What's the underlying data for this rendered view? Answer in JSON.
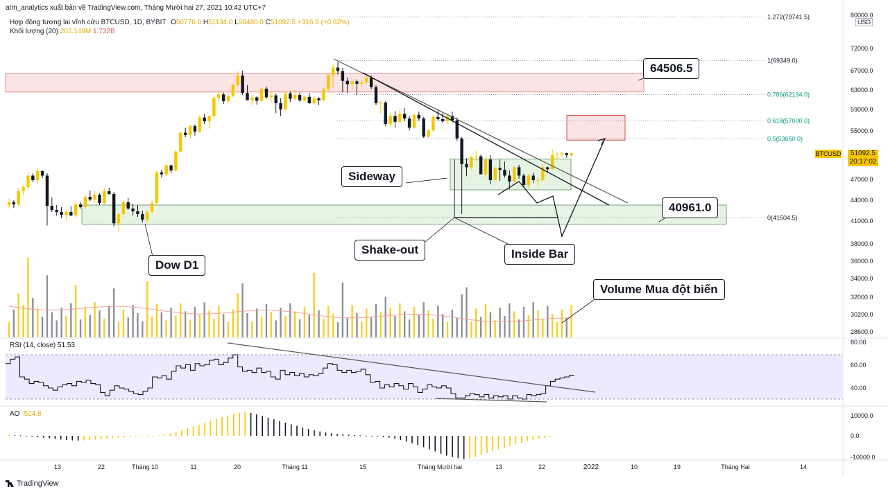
{
  "header": {
    "publisher_line": "atm_analytics xuất bản về TradingView.com, Tháng Mười hai 27, 2021 10:42 UTC+7",
    "symbol_desc": "Hợp đồng tương lai vĩnh cửu BTCUSD, 1D, BYBIT",
    "ohlc": {
      "o_label": "O",
      "o": "50776.0",
      "h_label": "H",
      "h": "51134.0",
      "l_label": "L",
      "l": "50480.0",
      "c_label": "C",
      "c": "51092.5",
      "change": "+316.5 (+0.62%)"
    },
    "volume_label": "Khối lượng (20)",
    "volume_value": "202.149M",
    "volume_ma": "1.732B"
  },
  "price_axis": {
    "ticks": [
      "80000.0",
      "72000.0",
      "67000.0",
      "63000.0",
      "59000.0",
      "55000.0",
      "51000.0",
      "47000.0",
      "44000.0",
      "41000.0",
      "38000.0",
      "36000.0",
      "34000.0",
      "32000.0",
      "30200.0",
      "28600.0"
    ],
    "currency": "USD",
    "symbol_tag": "BTCUSD",
    "last_price": "51092.5",
    "countdown": "20:17:02"
  },
  "fib_levels": [
    "1.272(79741.5)",
    "1(69349.0)",
    "0.786(62134.0)",
    "0.618(57000.0)",
    "0.5(53650.0)",
    "0(41504.5)"
  ],
  "callouts": {
    "resistance": "64506.5",
    "support": "40961.0",
    "sideway": "Sideway",
    "shakeout": "Shake-out",
    "insidebar": "Inside Bar",
    "dow": "Dow D1",
    "volume_note": "Volume Mua đột biến"
  },
  "rsi": {
    "label": "RSI (14, close)",
    "value": "51.53",
    "ticks": [
      "80.00",
      "60.00",
      "40.00"
    ]
  },
  "ao": {
    "label": "AO",
    "value": "-524.8",
    "ticks": [
      "10000.0",
      "0.0",
      "-10000.0"
    ]
  },
  "time_axis": [
    "13",
    "22",
    "Tháng 10",
    "11",
    "20",
    "Tháng 11",
    "15",
    "Tháng Mười hai",
    "13",
    "22",
    "2022",
    "10",
    "19",
    "Tháng Hai",
    "14"
  ],
  "branding": "TradingView",
  "colors": {
    "up": "#f7c600",
    "down": "#131722",
    "rsi_line": "#131722",
    "rsi_band": "#ede9ff",
    "zone_green": "#e6f4e4",
    "zone_red": "#fbe4e4",
    "volume_ma": "#f2a09b"
  },
  "chart_data": {
    "type": "candlestick",
    "symbol": "BTCUSD",
    "timeframe": "1D",
    "y_range": [
      28000,
      81000
    ],
    "candles": [
      {
        "o": 43300,
        "h": 44200,
        "l": 42800,
        "c": 43700
      },
      {
        "o": 43700,
        "h": 44000,
        "l": 42900,
        "c": 43400
      },
      {
        "o": 43400,
        "h": 45800,
        "l": 43100,
        "c": 45300
      },
      {
        "o": 45300,
        "h": 46200,
        "l": 44800,
        "c": 45900
      },
      {
        "o": 45900,
        "h": 48200,
        "l": 45500,
        "c": 47600
      },
      {
        "o": 47600,
        "h": 48000,
        "l": 46600,
        "c": 46900
      },
      {
        "o": 46900,
        "h": 48900,
        "l": 46500,
        "c": 48300
      },
      {
        "o": 48300,
        "h": 48400,
        "l": 47200,
        "c": 47600
      },
      {
        "o": 47600,
        "h": 48000,
        "l": 40400,
        "c": 43200
      },
      {
        "o": 43200,
        "h": 44400,
        "l": 42300,
        "c": 42600
      },
      {
        "o": 42600,
        "h": 43300,
        "l": 41800,
        "c": 42300
      },
      {
        "o": 42300,
        "h": 43000,
        "l": 41400,
        "c": 41900
      },
      {
        "o": 41900,
        "h": 42500,
        "l": 41000,
        "c": 42300
      },
      {
        "o": 42300,
        "h": 43100,
        "l": 41700,
        "c": 41800
      },
      {
        "o": 41800,
        "h": 43700,
        "l": 41500,
        "c": 43400
      },
      {
        "o": 43400,
        "h": 43700,
        "l": 42800,
        "c": 43000
      },
      {
        "o": 43000,
        "h": 44800,
        "l": 42700,
        "c": 44500
      },
      {
        "o": 44500,
        "h": 45400,
        "l": 43900,
        "c": 44100
      },
      {
        "o": 44100,
        "h": 45300,
        "l": 43600,
        "c": 44800
      },
      {
        "o": 44800,
        "h": 45000,
        "l": 43300,
        "c": 43600
      },
      {
        "o": 43600,
        "h": 45700,
        "l": 43400,
        "c": 45300
      },
      {
        "o": 45300,
        "h": 45800,
        "l": 44800,
        "c": 44900
      },
      {
        "o": 44900,
        "h": 45200,
        "l": 40300,
        "c": 40700
      },
      {
        "o": 40700,
        "h": 42200,
        "l": 39600,
        "c": 42000
      },
      {
        "o": 42000,
        "h": 44000,
        "l": 41500,
        "c": 43700
      },
      {
        "o": 43700,
        "h": 44300,
        "l": 42600,
        "c": 42800
      },
      {
        "o": 42800,
        "h": 43500,
        "l": 41800,
        "c": 42400
      },
      {
        "o": 42400,
        "h": 43300,
        "l": 41600,
        "c": 42000
      },
      {
        "o": 42000,
        "h": 42500,
        "l": 40800,
        "c": 41200
      },
      {
        "o": 41200,
        "h": 42600,
        "l": 40800,
        "c": 42300
      },
      {
        "o": 42300,
        "h": 44000,
        "l": 42100,
        "c": 43600
      },
      {
        "o": 43600,
        "h": 48400,
        "l": 43400,
        "c": 48100
      },
      {
        "o": 48100,
        "h": 48500,
        "l": 47300,
        "c": 47800
      },
      {
        "o": 47800,
        "h": 49400,
        "l": 47500,
        "c": 49200
      },
      {
        "o": 49200,
        "h": 49300,
        "l": 48000,
        "c": 48400
      },
      {
        "o": 48400,
        "h": 51600,
        "l": 48200,
        "c": 51400
      },
      {
        "o": 51400,
        "h": 54800,
        "l": 51200,
        "c": 54700
      },
      {
        "o": 54700,
        "h": 55600,
        "l": 53900,
        "c": 54300
      },
      {
        "o": 54300,
        "h": 56200,
        "l": 53600,
        "c": 55900
      },
      {
        "o": 55900,
        "h": 56200,
        "l": 54200,
        "c": 54900
      },
      {
        "o": 54900,
        "h": 58000,
        "l": 54700,
        "c": 57500
      },
      {
        "o": 57500,
        "h": 58200,
        "l": 56300,
        "c": 56800
      },
      {
        "o": 56800,
        "h": 57900,
        "l": 55400,
        "c": 57800
      },
      {
        "o": 57800,
        "h": 61800,
        "l": 57300,
        "c": 61400
      },
      {
        "o": 61400,
        "h": 62900,
        "l": 60600,
        "c": 62100
      },
      {
        "o": 62100,
        "h": 62500,
        "l": 60100,
        "c": 60700
      },
      {
        "o": 60700,
        "h": 62300,
        "l": 60200,
        "c": 61800
      },
      {
        "o": 61800,
        "h": 64300,
        "l": 61500,
        "c": 64100
      },
      {
        "o": 64100,
        "h": 66900,
        "l": 63800,
        "c": 66000
      },
      {
        "o": 66000,
        "h": 67000,
        "l": 62000,
        "c": 62400
      },
      {
        "o": 62400,
        "h": 64000,
        "l": 60900,
        "c": 60900
      },
      {
        "o": 60900,
        "h": 62000,
        "l": 59900,
        "c": 61500
      },
      {
        "o": 61500,
        "h": 61700,
        "l": 60000,
        "c": 60800
      },
      {
        "o": 60800,
        "h": 63600,
        "l": 60500,
        "c": 63300
      },
      {
        "o": 63300,
        "h": 63700,
        "l": 61200,
        "c": 61500
      },
      {
        "o": 61500,
        "h": 62800,
        "l": 60500,
        "c": 61900
      },
      {
        "o": 61900,
        "h": 62300,
        "l": 58300,
        "c": 60300
      },
      {
        "o": 60300,
        "h": 61300,
        "l": 57800,
        "c": 59000
      },
      {
        "o": 59000,
        "h": 62600,
        "l": 58800,
        "c": 62300
      },
      {
        "o": 62300,
        "h": 62700,
        "l": 60500,
        "c": 61200
      },
      {
        "o": 61200,
        "h": 63000,
        "l": 60800,
        "c": 62000
      },
      {
        "o": 62000,
        "h": 62500,
        "l": 60600,
        "c": 60900
      },
      {
        "o": 60900,
        "h": 61800,
        "l": 60600,
        "c": 61600
      },
      {
        "o": 61600,
        "h": 62400,
        "l": 60100,
        "c": 60300
      },
      {
        "o": 60300,
        "h": 61700,
        "l": 60000,
        "c": 61300
      },
      {
        "o": 61300,
        "h": 61500,
        "l": 59900,
        "c": 60900
      },
      {
        "o": 60900,
        "h": 63600,
        "l": 60700,
        "c": 63200
      },
      {
        "o": 63200,
        "h": 66500,
        "l": 62900,
        "c": 66100
      },
      {
        "o": 66100,
        "h": 68500,
        "l": 63500,
        "c": 67700
      },
      {
        "o": 67700,
        "h": 69000,
        "l": 66200,
        "c": 66900
      },
      {
        "o": 66900,
        "h": 67600,
        "l": 62500,
        "c": 64900
      },
      {
        "o": 64900,
        "h": 65600,
        "l": 62400,
        "c": 64200
      },
      {
        "o": 64200,
        "h": 65000,
        "l": 63000,
        "c": 64800
      },
      {
        "o": 64800,
        "h": 65200,
        "l": 62000,
        "c": 64300
      },
      {
        "o": 64300,
        "h": 65200,
        "l": 63500,
        "c": 64600
      },
      {
        "o": 64600,
        "h": 66300,
        "l": 64300,
        "c": 65500
      },
      {
        "o": 65500,
        "h": 66000,
        "l": 63200,
        "c": 63600
      },
      {
        "o": 63600,
        "h": 64000,
        "l": 59900,
        "c": 60300
      },
      {
        "o": 60300,
        "h": 60800,
        "l": 58300,
        "c": 60400
      },
      {
        "o": 60400,
        "h": 60700,
        "l": 55900,
        "c": 56300
      },
      {
        "o": 56300,
        "h": 58500,
        "l": 55800,
        "c": 57800
      },
      {
        "o": 57800,
        "h": 58700,
        "l": 55600,
        "c": 56700
      },
      {
        "o": 56700,
        "h": 59000,
        "l": 56400,
        "c": 58200
      },
      {
        "o": 58200,
        "h": 59300,
        "l": 56800,
        "c": 57300
      },
      {
        "o": 57300,
        "h": 57800,
        "l": 55100,
        "c": 55600
      },
      {
        "o": 55600,
        "h": 58200,
        "l": 55400,
        "c": 58000
      },
      {
        "o": 58000,
        "h": 58600,
        "l": 56900,
        "c": 57300
      },
      {
        "o": 57300,
        "h": 57600,
        "l": 53800,
        "c": 54000
      },
      {
        "o": 54000,
        "h": 55400,
        "l": 53700,
        "c": 55100
      },
      {
        "o": 55100,
        "h": 58000,
        "l": 54900,
        "c": 57600
      },
      {
        "o": 57600,
        "h": 58800,
        "l": 56900,
        "c": 57200
      },
      {
        "o": 57200,
        "h": 58300,
        "l": 56500,
        "c": 56800
      },
      {
        "o": 56800,
        "h": 58000,
        "l": 56300,
        "c": 57800
      },
      {
        "o": 57800,
        "h": 58600,
        "l": 56600,
        "c": 57000
      },
      {
        "o": 57000,
        "h": 57500,
        "l": 53200,
        "c": 53700
      },
      {
        "o": 53700,
        "h": 53900,
        "l": 42000,
        "c": 49400
      },
      {
        "o": 49400,
        "h": 50300,
        "l": 47500,
        "c": 48900
      },
      {
        "o": 48900,
        "h": 50700,
        "l": 48500,
        "c": 50500
      },
      {
        "o": 50500,
        "h": 51600,
        "l": 49800,
        "c": 50600
      },
      {
        "o": 50600,
        "h": 50900,
        "l": 47800,
        "c": 47800
      },
      {
        "o": 47800,
        "h": 50600,
        "l": 47300,
        "c": 50100
      },
      {
        "o": 50100,
        "h": 50800,
        "l": 46300,
        "c": 46900
      },
      {
        "o": 46900,
        "h": 49200,
        "l": 46700,
        "c": 48800
      },
      {
        "o": 48800,
        "h": 50100,
        "l": 46800,
        "c": 48500
      },
      {
        "o": 48500,
        "h": 49800,
        "l": 47300,
        "c": 47600
      },
      {
        "o": 47600,
        "h": 48400,
        "l": 45600,
        "c": 46700
      },
      {
        "o": 46700,
        "h": 49100,
        "l": 46600,
        "c": 48900
      },
      {
        "o": 48900,
        "h": 49300,
        "l": 47100,
        "c": 47600
      },
      {
        "o": 47600,
        "h": 47900,
        "l": 45800,
        "c": 46200
      },
      {
        "o": 46200,
        "h": 47900,
        "l": 45700,
        "c": 47600
      },
      {
        "o": 47600,
        "h": 48100,
        "l": 46500,
        "c": 46900
      },
      {
        "o": 46900,
        "h": 47300,
        "l": 45900,
        "c": 46900
      },
      {
        "o": 46900,
        "h": 49300,
        "l": 46700,
        "c": 48900
      },
      {
        "o": 48900,
        "h": 49000,
        "l": 48000,
        "c": 48600
      },
      {
        "o": 48600,
        "h": 51800,
        "l": 48400,
        "c": 50800
      },
      {
        "o": 50800,
        "h": 51300,
        "l": 50100,
        "c": 50900
      },
      {
        "o": 50900,
        "h": 51300,
        "l": 50500,
        "c": 51100
      },
      {
        "o": 51100,
        "h": 51200,
        "l": 50400,
        "c": 50800
      },
      {
        "o": 50776,
        "h": 51134,
        "l": 50480,
        "c": 51092.5
      }
    ],
    "volume_ma_series": [
      0.5,
      0.52,
      0.5,
      0.5,
      0.48,
      0.47,
      0.46,
      0.44,
      0.42,
      0.4,
      0.36,
      0.33,
      0.3,
      0.29
    ],
    "rsi_values": [
      62,
      66,
      68,
      50,
      48,
      44,
      46,
      45,
      42,
      40,
      38,
      41,
      43,
      44,
      42,
      46,
      45,
      47,
      44,
      43,
      36,
      33,
      38,
      42,
      40,
      39,
      37,
      35,
      34,
      37,
      40,
      50,
      49,
      51,
      48,
      55,
      60,
      58,
      61,
      56,
      62,
      60,
      61,
      65,
      66,
      61,
      63,
      67,
      70,
      59,
      55,
      56,
      54,
      58,
      54,
      55,
      50,
      48,
      56,
      52,
      54,
      51,
      53,
      50,
      52,
      51,
      53,
      58,
      62,
      61,
      56,
      54,
      56,
      54,
      55,
      57,
      52,
      45,
      46,
      40,
      43,
      41,
      44,
      42,
      39,
      44,
      41,
      36,
      39,
      43,
      41,
      40,
      42,
      40,
      35,
      31,
      31,
      33,
      35,
      34,
      32,
      34,
      31,
      33,
      32,
      33,
      30,
      33,
      31,
      30,
      34,
      33,
      34,
      35,
      42,
      46,
      48,
      49,
      50,
      51.53
    ],
    "ao_values": [
      500,
      300,
      200,
      -200,
      -400,
      -700,
      -900,
      -1200,
      -1500,
      -1800,
      -2000,
      -2200,
      -2300,
      -2200,
      -2000,
      -1800,
      -1700,
      -1500,
      -1200,
      -900,
      -700,
      -500,
      -300,
      -200,
      -100,
      100,
      300,
      600,
      1200,
      2000,
      2800,
      3600,
      4500,
      5400,
      6300,
      7200,
      8100,
      9000,
      9800,
      10500,
      11200,
      11500,
      11000,
      10300,
      9500,
      8700,
      7900,
      7100,
      6300,
      5500,
      4800,
      4000,
      3300,
      2700,
      2100,
      1600,
      1200,
      900,
      700,
      500,
      300,
      200,
      100,
      -100,
      -300,
      -600,
      -900,
      -1400,
      -2000,
      -2800,
      -3600,
      -4500,
      -5500,
      -6500,
      -7500,
      -8600,
      -9500,
      -10200,
      -10800,
      -11200,
      -10900,
      -10200,
      -9300,
      -8300,
      -7400,
      -6500,
      -5700,
      -4900,
      -4100,
      -3400,
      -2600,
      -1900,
      -1300,
      -900,
      -524.8
    ]
  }
}
